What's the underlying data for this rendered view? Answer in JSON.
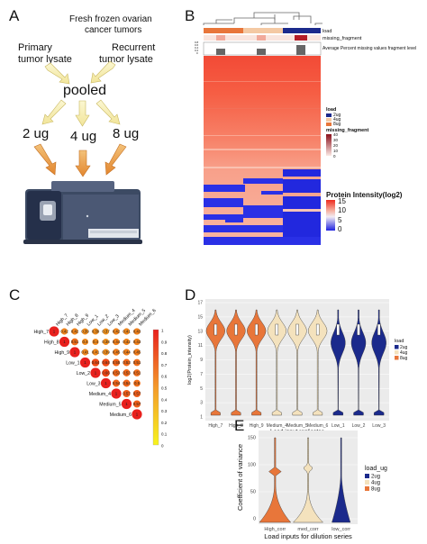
{
  "panels": {
    "a": "A",
    "b": "B",
    "c": "C",
    "d": "D",
    "e": "E"
  },
  "panel_a": {
    "title_line1": "Fresh frozen ovarian",
    "title_line2": "cancer tumors",
    "primary_line1": "Primary",
    "primary_line2": "tumor lysate",
    "recurrent_line1": "Recurrent",
    "recurrent_line2": "tumor lysate",
    "pooled": "pooled",
    "loads": [
      "2 ug",
      "4 ug",
      "8 ug"
    ],
    "arrow_color": "#e8a04a",
    "arrow_fill_top": "#f7f3c4"
  },
  "panel_b": {
    "annotations": [
      "load",
      "missing_fragment",
      "Average Percent missing values fragment level"
    ],
    "legend_load_title": "load",
    "legend_load_items": [
      "2ug",
      "4ug",
      "8ug"
    ],
    "legend_load_colors": [
      "#1b2a8c",
      "#f4c9a3",
      "#e8763a"
    ],
    "legend_missing_title": "missing_fragment",
    "legend_missing_ticks": [
      "40",
      "30",
      "20",
      "10",
      "0"
    ],
    "legend_intensity_title": "Protein Intensity(log2)",
    "legend_intensity_ticks": [
      "15",
      "10",
      "5",
      "0"
    ],
    "mini_axis_ticks": [
      "0.8",
      "0.6",
      "0.4",
      "0.2",
      "0"
    ]
  },
  "panel_c": {
    "col_labels": [
      "High_7",
      "High_8",
      "High_9",
      "Low_1",
      "Low_2",
      "Low_3",
      "Medium_4",
      "Medium_5",
      "Medium_6"
    ],
    "row_labels": [
      "High_7",
      "High_8",
      "High_9",
      "Low_1",
      "Low_2",
      "Low_3",
      "Medium_4",
      "Medium_5",
      "Medium_6"
    ],
    "matrix": [
      [
        "1",
        "0.42",
        "0.42",
        "0.39",
        "0.39",
        "0.37",
        "0.42",
        "0.41",
        "0.43"
      ],
      [
        "",
        "1",
        "0.51",
        "0.4",
        "0.4",
        "0.38",
        "0.44",
        "0.42",
        "0.43"
      ],
      [
        "",
        "",
        "1",
        "0.41",
        "0.41",
        "0.39",
        "0.45",
        "0.44",
        "0.45"
      ],
      [
        "",
        "",
        "",
        "1",
        "0.64",
        "0.64",
        "0.55",
        "0.53",
        "0.51"
      ],
      [
        "",
        "",
        "",
        "",
        "1",
        "0.66",
        "0.53",
        "0.53",
        "0.51"
      ],
      [
        "",
        "",
        "",
        "",
        "",
        "1",
        "0.54",
        "0.54",
        "0.5"
      ],
      [
        "",
        "",
        "",
        "",
        "",
        "",
        "1",
        "0.57",
        "0.57"
      ],
      [
        "",
        "",
        "",
        "",
        "",
        "",
        "",
        "1",
        "0.57"
      ],
      [
        "",
        "",
        "",
        "",
        "",
        "",
        "",
        "",
        "1"
      ]
    ],
    "scale_ticks": [
      "1",
      "0.9",
      "0.8",
      "0.7",
      "0.6",
      "0.5",
      "0.4",
      "0.3",
      "0.2",
      "0.1",
      "0"
    ]
  },
  "chart_data": [
    {
      "type": "violin",
      "panel": "D",
      "ylabel": "log2(Protein_intensity)",
      "xlabel": "Load input replicates",
      "categories": [
        "High_7",
        "High_8",
        "High_9",
        "Medium_4",
        "Medium_5",
        "Medium_6",
        "Low_1",
        "Low_2",
        "Low_3"
      ],
      "y_ticks": [
        "17",
        "15",
        "13",
        "11",
        "9",
        "7",
        "5",
        "3",
        "1"
      ],
      "legend_title": "load",
      "legend_items": [
        "2ug",
        "4ug",
        "8ug"
      ],
      "legend_colors": [
        "#1b2a8c",
        "#f4e2bd",
        "#e8763a"
      ]
    },
    {
      "type": "violin",
      "panel": "E",
      "ylabel": "Coefficient of variance",
      "xlabel": "Load inputs for dilution series",
      "categories": [
        "High_corr",
        "med_corr",
        "low_corr"
      ],
      "y_ticks": [
        "150",
        "100",
        "50",
        "0"
      ],
      "legend_title": "load_ug",
      "legend_items": [
        "2ug",
        "4ug",
        "8ug"
      ],
      "legend_colors": [
        "#1b2a8c",
        "#f4e2bd",
        "#e8763a"
      ]
    }
  ]
}
